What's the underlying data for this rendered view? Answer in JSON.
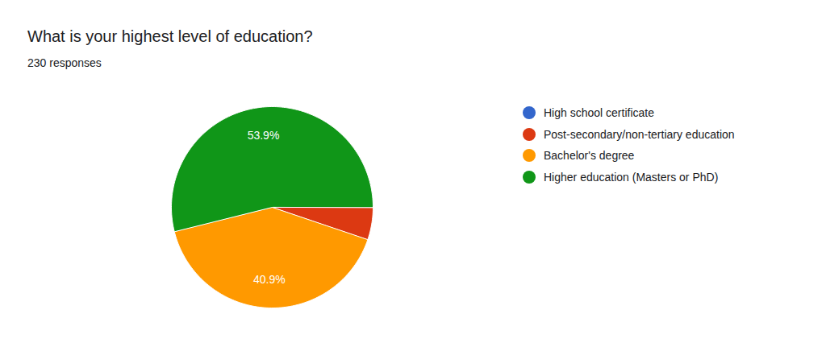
{
  "chart_data": {
    "type": "pie",
    "title": "What is your highest level of education?",
    "subtitle": "230 responses",
    "categories": [
      "High school certificate",
      "Post-secondary/non-tertiary education",
      "Bachelor's degree",
      "Higher education (Masters or PhD)"
    ],
    "values": [
      0,
      5.2,
      40.9,
      53.9
    ],
    "colors": [
      "#3366cc",
      "#dc3912",
      "#ff9900",
      "#109618"
    ],
    "data_labels": true,
    "value_labels": [
      null,
      null,
      "40.9%",
      "53.9%"
    ],
    "legend": "right"
  }
}
